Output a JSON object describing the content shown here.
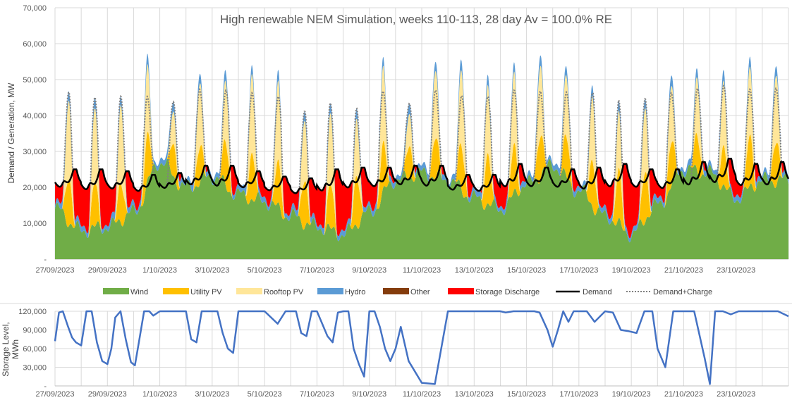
{
  "chart_data": [
    {
      "type": "area",
      "title": "High renewable NEM Simulation, weeks 110-113, 28 day Av = 100.0% RE",
      "xlabel": "",
      "ylabel": "Demand / Generation, MW",
      "ylim": [
        0,
        70000
      ],
      "yticks": [
        0,
        10000,
        20000,
        30000,
        40000,
        50000,
        60000,
        70000
      ],
      "ytick_labels": [
        "-",
        "10,000",
        "20,000",
        "30,000",
        "40,000",
        "50,000",
        "60,000",
        "70,000"
      ],
      "xlim_days": [
        0,
        28
      ],
      "xtick_labels": [
        "27/09/2023",
        "29/09/2023",
        "1/10/2023",
        "3/10/2023",
        "5/10/2023",
        "7/10/2023",
        "9/10/2023",
        "11/10/2023",
        "13/10/2023",
        "15/10/2023",
        "17/10/2023",
        "19/10/2023",
        "21/10/2023",
        "23/10/2023"
      ],
      "grid": true,
      "legend_position": "bottom",
      "series": [
        {
          "name": "Wind",
          "color": "#70AD47",
          "kind": "area",
          "daily_values": [
            14000,
            8000,
            9000,
            13000,
            27000,
            20000,
            23000,
            18000,
            16000,
            12000,
            9000,
            7000,
            13000,
            22000,
            24000,
            22000,
            17000,
            14000,
            21000,
            26000,
            19000,
            12000,
            7000,
            15000,
            25000,
            24000,
            17000,
            22000
          ]
        },
        {
          "name": "Utility PV",
          "color": "#FFC000",
          "kind": "area",
          "daily_peak": [
            13000,
            12000,
            11000,
            13000,
            9000,
            10000,
            12000,
            13000,
            12000,
            13000,
            12000,
            14000,
            13000,
            9000,
            11000,
            12000,
            14000,
            13000,
            12000,
            11000,
            13000,
            14000,
            14000,
            12000,
            10000,
            11000,
            14000,
            12000
          ]
        },
        {
          "name": "Rooftop PV",
          "color": "#FFE699",
          "kind": "area",
          "daily_peak": [
            22000,
            21000,
            22000,
            19000,
            9000,
            18000,
            17000,
            22000,
            22000,
            17000,
            20000,
            16000,
            21000,
            9000,
            19000,
            21000,
            19000,
            20000,
            20000,
            17000,
            18000,
            16000,
            18000,
            16000,
            16000,
            18000,
            19000,
            19000
          ]
        },
        {
          "name": "Hydro",
          "color": "#5B9BD5",
          "kind": "area",
          "typical": 2000
        },
        {
          "name": "Other",
          "color": "#843C0C",
          "kind": "area",
          "typical": 0
        },
        {
          "name": "Storage Discharge",
          "color": "#FF0000",
          "kind": "area",
          "note_in_legend": true
        },
        {
          "name": "Demand",
          "color": "#000000",
          "kind": "line",
          "daily_peak": [
            25000,
            25000,
            24500,
            23500,
            24000,
            26000,
            26000,
            24500,
            23000,
            22500,
            25000,
            25500,
            25500,
            26000,
            26000,
            23500,
            23500,
            26500,
            25500,
            25000,
            25500,
            26500,
            25000,
            25000,
            27000,
            28000,
            26500,
            27000
          ],
          "daily_trough": [
            18000,
            17000,
            17500,
            17000,
            18000,
            18500,
            18000,
            18000,
            17500,
            16500,
            16500,
            17500,
            18000,
            18500,
            18000,
            17500,
            17000,
            17500,
            18000,
            18000,
            17000,
            17500,
            18000,
            17500,
            18000,
            18500,
            18000,
            18000
          ]
        },
        {
          "name": "Demand+Charge",
          "color": "#808080",
          "kind": "dotted line"
        }
      ]
    },
    {
      "type": "line",
      "ylabel": "Storage Level, MWh",
      "ylim": [
        0,
        120000
      ],
      "yticks": [
        0,
        30000,
        60000,
        90000,
        120000
      ],
      "ytick_labels": [
        "-",
        "30,000",
        "60,000",
        "90,000",
        "120,000"
      ],
      "xtick_labels": [
        "27/09/2023",
        "29/09/2023",
        "1/10/2023",
        "3/10/2023",
        "5/10/2023",
        "7/10/2023",
        "9/10/2023",
        "11/10/2023",
        "13/10/2023",
        "15/10/2023",
        "17/10/2023",
        "19/10/2023",
        "21/10/2023",
        "23/10/2023"
      ],
      "series": [
        {
          "name": "Storage Level",
          "color": "#4472C4",
          "x_days": [
            0,
            0.15,
            0.3,
            0.5,
            0.65,
            0.8,
            1.0,
            1.2,
            1.4,
            1.6,
            1.8,
            2.0,
            2.15,
            2.3,
            2.5,
            2.7,
            2.9,
            3.05,
            3.2,
            3.4,
            3.6,
            3.75,
            4.0,
            4.2,
            4.4,
            4.6,
            4.8,
            5.0,
            5.2,
            5.4,
            5.6,
            5.8,
            6.0,
            6.2,
            6.4,
            6.6,
            6.8,
            7.0,
            7.2,
            7.5,
            7.8,
            8.0,
            8.2,
            8.5,
            8.8,
            9.0,
            9.2,
            9.4,
            9.6,
            9.8,
            10.0,
            10.2,
            10.4,
            10.6,
            10.8,
            11.0,
            11.2,
            11.4,
            11.6,
            11.8,
            12.0,
            12.2,
            12.4,
            12.6,
            12.8,
            13.0,
            13.2,
            13.5,
            14.0,
            14.5,
            15.0,
            15.5,
            16.0,
            16.5,
            16.8,
            17.0,
            17.2,
            17.5,
            17.8,
            18.0,
            18.3,
            18.5,
            18.8,
            19.0,
            19.2,
            19.4,
            19.6,
            19.8,
            20.0,
            20.3,
            20.6,
            21.0,
            21.3,
            21.6,
            21.9,
            22.2,
            22.5,
            22.8,
            23.0,
            23.3,
            23.6,
            24.0,
            24.4,
            24.8,
            25.0,
            25.2,
            25.5,
            25.8,
            26.1,
            26.4,
            26.8,
            27.2,
            27.6,
            28.0
          ],
          "values": [
            72000,
            118000,
            120000,
            95000,
            78000,
            70000,
            65000,
            120000,
            120000,
            70000,
            40000,
            35000,
            60000,
            110000,
            120000,
            75000,
            38000,
            33000,
            70000,
            120000,
            120000,
            113000,
            120000,
            120000,
            120000,
            120000,
            120000,
            120000,
            75000,
            70000,
            120000,
            120000,
            120000,
            120000,
            85000,
            60000,
            53000,
            120000,
            120000,
            120000,
            120000,
            120000,
            112000,
            100000,
            120000,
            120000,
            120000,
            85000,
            80000,
            120000,
            120000,
            100000,
            80000,
            70000,
            118000,
            120000,
            120000,
            60000,
            35000,
            15000,
            120000,
            120000,
            95000,
            60000,
            40000,
            60000,
            95000,
            40000,
            5000,
            3000,
            120000,
            120000,
            120000,
            120000,
            120000,
            120000,
            118000,
            120000,
            120000,
            120000,
            120000,
            118000,
            90000,
            63000,
            90000,
            120000,
            103000,
            120000,
            120000,
            120000,
            103000,
            120000,
            118000,
            90000,
            88000,
            85000,
            120000,
            120000,
            60000,
            30000,
            120000,
            120000,
            120000,
            45000,
            3000,
            120000,
            120000,
            115000,
            120000,
            120000,
            120000,
            120000,
            120000,
            112000
          ]
        }
      ]
    }
  ]
}
